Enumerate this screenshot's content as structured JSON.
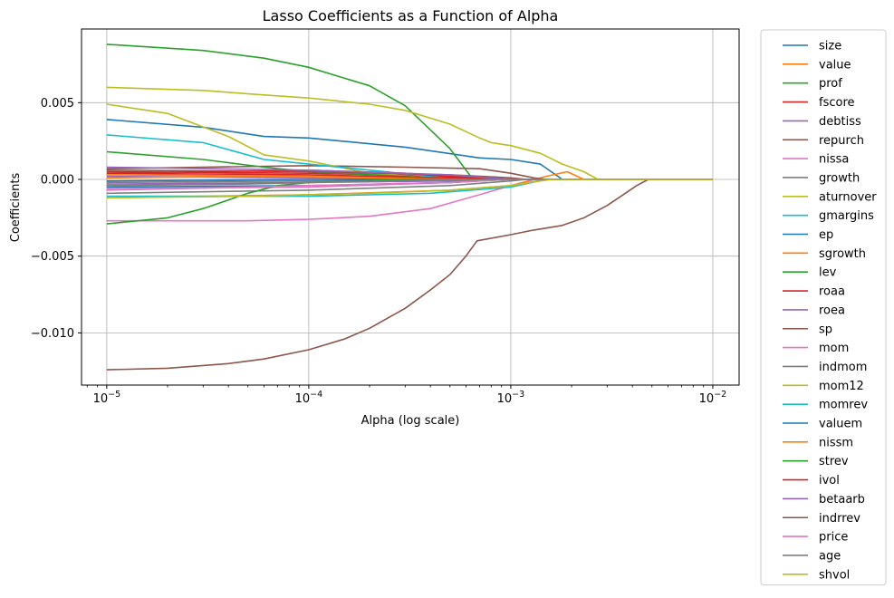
{
  "chart_data": {
    "type": "line",
    "title": "Lasso Coefficients as a Function of Alpha",
    "xlabel": "Alpha (log scale)",
    "ylabel": "Coefficients",
    "xscale": "log",
    "xlim": [
      7.5e-06,
      0.0135
    ],
    "ylim": [
      -0.0134,
      0.0098
    ],
    "yticks": [
      -0.01,
      -0.005,
      0.0,
      0.005
    ],
    "ytick_labels": [
      "−0.010",
      "−0.005",
      "0.000",
      "0.005"
    ],
    "xticks": [
      1e-05,
      0.0001,
      0.001,
      0.01
    ],
    "xtick_labels": [
      {
        "base": "10",
        "exp": "−5"
      },
      {
        "base": "10",
        "exp": "−4"
      },
      {
        "base": "10",
        "exp": "−3"
      },
      {
        "base": "10",
        "exp": "−2"
      }
    ],
    "grid": true,
    "legend_position": "outside-right",
    "series": [
      {
        "name": "size",
        "color": "#1f77b4",
        "points": [
          [
            1e-05,
            0.0039
          ],
          [
            3e-05,
            0.0034
          ],
          [
            6e-05,
            0.0028
          ],
          [
            0.0001,
            0.0027
          ],
          [
            0.0003,
            0.0021
          ],
          [
            0.0007,
            0.0014
          ],
          [
            0.001,
            0.0013
          ],
          [
            0.0014,
            0.001
          ],
          [
            0.0018,
            0.0
          ],
          [
            0.01,
            0.0
          ]
        ]
      },
      {
        "name": "value",
        "color": "#ff7f0e",
        "points": [
          [
            1e-05,
            -0.0012
          ],
          [
            0.0001,
            -0.001
          ],
          [
            0.0005,
            -0.0007
          ],
          [
            0.001,
            -0.0004
          ],
          [
            0.0015,
            0.0002
          ],
          [
            0.0019,
            0.0005
          ],
          [
            0.0023,
            0.0
          ],
          [
            0.01,
            0.0
          ]
        ]
      },
      {
        "name": "prof",
        "color": "#2ca02c",
        "points": [
          [
            1e-05,
            0.0088
          ],
          [
            3e-05,
            0.0084
          ],
          [
            6e-05,
            0.0079
          ],
          [
            0.0001,
            0.0073
          ],
          [
            0.0002,
            0.0061
          ],
          [
            0.0003,
            0.0048
          ],
          [
            0.0005,
            0.002
          ],
          [
            0.00065,
            0.0
          ],
          [
            0.01,
            0.0
          ]
        ]
      },
      {
        "name": "fscore",
        "color": "#d62728",
        "points": [
          [
            1e-05,
            0.0005
          ],
          [
            0.0001,
            0.0004
          ],
          [
            0.0005,
            0.0002
          ],
          [
            0.001,
            0.0
          ],
          [
            0.01,
            0.0
          ]
        ]
      },
      {
        "name": "debtiss",
        "color": "#9467bd",
        "points": [
          [
            1e-05,
            -0.0003
          ],
          [
            0.0001,
            -0.0002
          ],
          [
            0.0005,
            -0.0001
          ],
          [
            0.0009,
            0.0
          ],
          [
            0.01,
            0.0
          ]
        ]
      },
      {
        "name": "repurch",
        "color": "#8c564b",
        "points": [
          [
            1e-05,
            0.0007
          ],
          [
            0.0001,
            0.0009
          ],
          [
            0.0003,
            0.0008
          ],
          [
            0.0007,
            0.0007
          ],
          [
            0.001,
            0.0004
          ],
          [
            0.0013,
            0.0001
          ],
          [
            0.0015,
            0.0
          ],
          [
            0.01,
            0.0
          ]
        ]
      },
      {
        "name": "nissa",
        "color": "#e377c2",
        "points": [
          [
            1e-05,
            -0.0006
          ],
          [
            0.0001,
            -0.0005
          ],
          [
            0.0005,
            -0.0002
          ],
          [
            0.001,
            0.0
          ],
          [
            0.01,
            0.0
          ]
        ]
      },
      {
        "name": "growth",
        "color": "#7f7f7f",
        "points": [
          [
            1e-05,
            -0.0002
          ],
          [
            0.0001,
            -0.0001
          ],
          [
            0.0006,
            0.0
          ],
          [
            0.01,
            0.0
          ]
        ]
      },
      {
        "name": "aturnover",
        "color": "#bcbd22",
        "points": [
          [
            1e-05,
            0.0049
          ],
          [
            2e-05,
            0.0043
          ],
          [
            4e-05,
            0.0028
          ],
          [
            6e-05,
            0.0016
          ],
          [
            0.0001,
            0.0012
          ],
          [
            0.0002,
            0.0004
          ],
          [
            0.0004,
            0.0001
          ],
          [
            0.0006,
            0.0
          ],
          [
            0.01,
            0.0
          ]
        ]
      },
      {
        "name": "gmargins",
        "color": "#17becf",
        "points": [
          [
            1e-05,
            0.0029
          ],
          [
            3e-05,
            0.0024
          ],
          [
            6e-05,
            0.0013
          ],
          [
            0.0001,
            0.001
          ],
          [
            0.0002,
            0.0006
          ],
          [
            0.0004,
            0.0002
          ],
          [
            0.0006,
            0.0
          ],
          [
            0.01,
            0.0
          ]
        ]
      },
      {
        "name": "ep",
        "color": "#1f77b4",
        "points": [
          [
            1e-05,
            -0.0005
          ],
          [
            0.0001,
            -0.0004
          ],
          [
            0.0005,
            -0.0002
          ],
          [
            0.001,
            0.0
          ],
          [
            0.01,
            0.0
          ]
        ]
      },
      {
        "name": "sgrowth",
        "color": "#ff7f0e",
        "points": [
          [
            1e-05,
            0.0003
          ],
          [
            0.0001,
            0.0002
          ],
          [
            0.0005,
            0.0001
          ],
          [
            0.0008,
            0.0
          ],
          [
            0.01,
            0.0
          ]
        ]
      },
      {
        "name": "lev",
        "color": "#2ca02c",
        "points": [
          [
            1e-05,
            0.0018
          ],
          [
            3e-05,
            0.0013
          ],
          [
            6e-05,
            0.0008
          ],
          [
            0.0001,
            0.0005
          ],
          [
            0.0003,
            0.0002
          ],
          [
            0.0005,
            0.0
          ],
          [
            0.01,
            0.0
          ]
        ]
      },
      {
        "name": "roaa",
        "color": "#d62728",
        "points": [
          [
            1e-05,
            0.0004
          ],
          [
            0.0001,
            0.0003
          ],
          [
            0.0005,
            0.0001
          ],
          [
            0.0009,
            0.0
          ],
          [
            0.01,
            0.0
          ]
        ]
      },
      {
        "name": "roea",
        "color": "#9467bd",
        "points": [
          [
            1e-05,
            0.0002
          ],
          [
            0.0001,
            0.0001
          ],
          [
            0.0005,
            0.0
          ],
          [
            0.01,
            0.0
          ]
        ]
      },
      {
        "name": "sp",
        "color": "#8c564b",
        "points": [
          [
            1e-05,
            0.0006
          ],
          [
            0.0001,
            0.0005
          ],
          [
            0.0005,
            0.0003
          ],
          [
            0.001,
            0.0001
          ],
          [
            0.0012,
            0.0
          ],
          [
            0.01,
            0.0
          ]
        ]
      },
      {
        "name": "mom",
        "color": "#e377c2",
        "points": [
          [
            1e-05,
            -0.0027
          ],
          [
            5e-05,
            -0.0027
          ],
          [
            0.0001,
            -0.0026
          ],
          [
            0.0002,
            -0.0024
          ],
          [
            0.0004,
            -0.0019
          ],
          [
            0.0007,
            -0.001
          ],
          [
            0.001,
            -0.0004
          ],
          [
            0.0015,
            0.0
          ],
          [
            0.01,
            0.0
          ]
        ]
      },
      {
        "name": "indmom",
        "color": "#7f7f7f",
        "points": [
          [
            1e-05,
            -0.0009
          ],
          [
            0.0001,
            -0.0007
          ],
          [
            0.0005,
            -0.0004
          ],
          [
            0.001,
            -0.0001
          ],
          [
            0.0012,
            0.0
          ],
          [
            0.01,
            0.0
          ]
        ]
      },
      {
        "name": "mom12",
        "color": "#bcbd22",
        "points": [
          [
            1e-05,
            0.006
          ],
          [
            3e-05,
            0.0058
          ],
          [
            6e-05,
            0.0055
          ],
          [
            0.0001,
            0.0053
          ],
          [
            0.0002,
            0.0049
          ],
          [
            0.0003,
            0.0045
          ],
          [
            0.0005,
            0.0036
          ],
          [
            0.0007,
            0.0027
          ],
          [
            0.0008,
            0.0024
          ],
          [
            0.001,
            0.0022
          ],
          [
            0.0014,
            0.0017
          ],
          [
            0.0018,
            0.001
          ],
          [
            0.0023,
            0.0005
          ],
          [
            0.0027,
            0.0
          ],
          [
            0.01,
            0.0
          ]
        ]
      },
      {
        "name": "momrev",
        "color": "#17becf",
        "points": [
          [
            1e-05,
            -0.0011
          ],
          [
            0.0001,
            -0.0011
          ],
          [
            0.0004,
            -0.0009
          ],
          [
            0.001,
            -0.0005
          ],
          [
            0.0015,
            0.0
          ],
          [
            0.01,
            0.0
          ]
        ]
      },
      {
        "name": "valuem",
        "color": "#1f77b4",
        "points": [
          [
            1e-05,
            -0.0001
          ],
          [
            0.0001,
            0.0
          ],
          [
            0.01,
            0.0
          ]
        ]
      },
      {
        "name": "nissm",
        "color": "#ff7f0e",
        "points": [
          [
            1e-05,
            0.0001
          ],
          [
            5e-05,
            0.0002
          ],
          [
            0.0002,
            0.0001
          ],
          [
            0.0006,
            0.0
          ],
          [
            0.01,
            0.0
          ]
        ]
      },
      {
        "name": "strev",
        "color": "#2ca02c",
        "points": [
          [
            1e-05,
            -0.0029
          ],
          [
            2e-05,
            -0.0025
          ],
          [
            3e-05,
            -0.0019
          ],
          [
            5e-05,
            -0.0009
          ],
          [
            7e-05,
            -0.0004
          ],
          [
            0.0001,
            -0.0002
          ],
          [
            0.0003,
            0.0
          ],
          [
            0.01,
            0.0
          ]
        ]
      },
      {
        "name": "ivol",
        "color": "#d62728",
        "points": [
          [
            1e-05,
            0.0004
          ],
          [
            0.0001,
            0.0006
          ],
          [
            0.0003,
            0.0004
          ],
          [
            0.0006,
            0.0001
          ],
          [
            0.0008,
            0.0
          ],
          [
            0.01,
            0.0
          ]
        ]
      },
      {
        "name": "betaarb",
        "color": "#9467bd",
        "points": [
          [
            1e-05,
            0.0008
          ],
          [
            0.0001,
            0.0006
          ],
          [
            0.0005,
            0.0003
          ],
          [
            0.001,
            0.0
          ],
          [
            0.01,
            0.0
          ]
        ]
      },
      {
        "name": "indrrev",
        "color": "#8c564b",
        "points": [
          [
            1e-05,
            -0.0124
          ],
          [
            2e-05,
            -0.0123
          ],
          [
            4e-05,
            -0.012
          ],
          [
            6e-05,
            -0.0117
          ],
          [
            0.0001,
            -0.0111
          ],
          [
            0.00015,
            -0.0104
          ],
          [
            0.0002,
            -0.0097
          ],
          [
            0.0003,
            -0.0084
          ],
          [
            0.0004,
            -0.0072
          ],
          [
            0.0005,
            -0.0062
          ],
          [
            0.0006,
            -0.005
          ],
          [
            0.00068,
            -0.004
          ],
          [
            0.001,
            -0.0036
          ],
          [
            0.0013,
            -0.0033
          ],
          [
            0.0018,
            -0.003
          ],
          [
            0.0023,
            -0.0025
          ],
          [
            0.003,
            -0.0017
          ],
          [
            0.0036,
            -0.001
          ],
          [
            0.0042,
            -0.0004
          ],
          [
            0.0048,
            0.0
          ],
          [
            0.01,
            0.0
          ]
        ]
      },
      {
        "name": "price",
        "color": "#e377c2",
        "points": [
          [
            1e-05,
            -0.0007
          ],
          [
            5e-05,
            -0.0005
          ],
          [
            0.0001,
            -0.0004
          ],
          [
            0.0005,
            -0.0002
          ],
          [
            0.001,
            0.0
          ],
          [
            0.01,
            0.0
          ]
        ]
      },
      {
        "name": "age",
        "color": "#7f7f7f",
        "points": [
          [
            1e-05,
            -0.0004
          ],
          [
            5e-05,
            -0.0003
          ],
          [
            0.0001,
            -0.0002
          ],
          [
            0.0006,
            0.0
          ],
          [
            0.01,
            0.0
          ]
        ]
      },
      {
        "name": "shvol",
        "color": "#bcbd22",
        "points": [
          [
            1e-05,
            -0.0012
          ],
          [
            5e-05,
            -0.0011
          ],
          [
            0.0002,
            -0.0009
          ],
          [
            0.0005,
            -0.0007
          ],
          [
            0.001,
            -0.0004
          ],
          [
            0.0014,
            -0.0001
          ],
          [
            0.0016,
            0.0
          ],
          [
            0.01,
            0.0
          ]
        ]
      }
    ]
  }
}
